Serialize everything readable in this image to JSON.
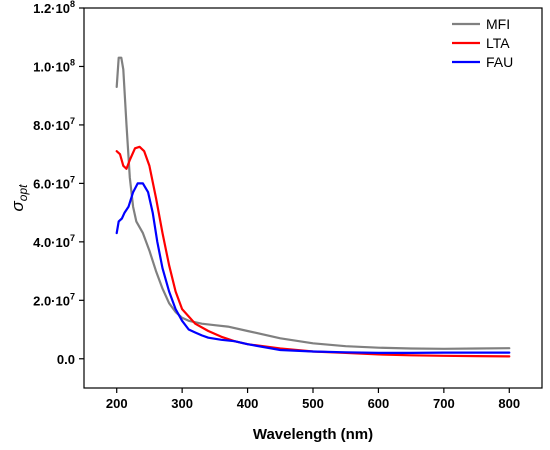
{
  "chart_data": {
    "type": "line",
    "xlabel": "Wavelength (nm)",
    "ylabel": {
      "symbol": "σ",
      "subscript": "opt"
    },
    "xlim": [
      150,
      850
    ],
    "ylim": [
      -10000000,
      120000000
    ],
    "x_ticks": [
      200,
      300,
      400,
      500,
      600,
      700,
      800
    ],
    "x_tick_labels": [
      "200",
      "300",
      "400",
      "500",
      "600",
      "700",
      "800"
    ],
    "y_ticks": [
      0,
      20000000,
      40000000,
      60000000,
      80000000,
      100000000,
      120000000
    ],
    "y_tick_labels": [
      {
        "mantissa": "0.0",
        "exp": ""
      },
      {
        "mantissa": "2.0·10",
        "exp": "7"
      },
      {
        "mantissa": "4.0·10",
        "exp": "7"
      },
      {
        "mantissa": "6.0·10",
        "exp": "7"
      },
      {
        "mantissa": "8.0·10",
        "exp": "7"
      },
      {
        "mantissa": "1.0·10",
        "exp": "8"
      },
      {
        "mantissa": "1.2·10",
        "exp": "8"
      }
    ],
    "grid": false,
    "legend_position": "top-right",
    "series": [
      {
        "name": "MFI",
        "color": "#808080",
        "points": [
          [
            200,
            93000000
          ],
          [
            203,
            103000000
          ],
          [
            207,
            103000000
          ],
          [
            210,
            99000000
          ],
          [
            215,
            80000000
          ],
          [
            220,
            62000000
          ],
          [
            225,
            52000000
          ],
          [
            230,
            47000000
          ],
          [
            240,
            43000000
          ],
          [
            250,
            37000000
          ],
          [
            260,
            30000000
          ],
          [
            270,
            24000000
          ],
          [
            280,
            19000000
          ],
          [
            290,
            16000000
          ],
          [
            300,
            14000000
          ],
          [
            310,
            13000000
          ],
          [
            330,
            12000000
          ],
          [
            350,
            11500000
          ],
          [
            370,
            11000000
          ],
          [
            400,
            9500000
          ],
          [
            450,
            7000000
          ],
          [
            500,
            5300000
          ],
          [
            550,
            4300000
          ],
          [
            600,
            3800000
          ],
          [
            650,
            3500000
          ],
          [
            700,
            3400000
          ],
          [
            750,
            3500000
          ],
          [
            800,
            3600000
          ]
        ]
      },
      {
        "name": "LTA",
        "color": "#ff0000",
        "points": [
          [
            200,
            71000000
          ],
          [
            205,
            70000000
          ],
          [
            210,
            66000000
          ],
          [
            215,
            65000000
          ],
          [
            220,
            68000000
          ],
          [
            228,
            72000000
          ],
          [
            235,
            72500000
          ],
          [
            242,
            71000000
          ],
          [
            250,
            66000000
          ],
          [
            260,
            55000000
          ],
          [
            270,
            43000000
          ],
          [
            280,
            32000000
          ],
          [
            290,
            23000000
          ],
          [
            300,
            17000000
          ],
          [
            320,
            12000000
          ],
          [
            340,
            9500000
          ],
          [
            360,
            7500000
          ],
          [
            380,
            6000000
          ],
          [
            400,
            5000000
          ],
          [
            450,
            3500000
          ],
          [
            500,
            2500000
          ],
          [
            550,
            2000000
          ],
          [
            600,
            1500000
          ],
          [
            650,
            1200000
          ],
          [
            700,
            1000000
          ],
          [
            750,
            900000
          ],
          [
            800,
            800000
          ]
        ]
      },
      {
        "name": "FAU",
        "color": "#0000ff",
        "points": [
          [
            200,
            43000000
          ],
          [
            203,
            47000000
          ],
          [
            208,
            48000000
          ],
          [
            212,
            50000000
          ],
          [
            218,
            52000000
          ],
          [
            225,
            57000000
          ],
          [
            232,
            60000000
          ],
          [
            240,
            60000000
          ],
          [
            248,
            57000000
          ],
          [
            255,
            50000000
          ],
          [
            262,
            40000000
          ],
          [
            270,
            31000000
          ],
          [
            280,
            23000000
          ],
          [
            290,
            17000000
          ],
          [
            300,
            13000000
          ],
          [
            310,
            10000000
          ],
          [
            320,
            9000000
          ],
          [
            330,
            8000000
          ],
          [
            340,
            7200000
          ],
          [
            360,
            6500000
          ],
          [
            380,
            6000000
          ],
          [
            400,
            5000000
          ],
          [
            450,
            3000000
          ],
          [
            500,
            2500000
          ],
          [
            550,
            2200000
          ],
          [
            600,
            2000000
          ],
          [
            650,
            2000000
          ],
          [
            700,
            2100000
          ],
          [
            750,
            2100000
          ],
          [
            800,
            2100000
          ]
        ]
      }
    ]
  }
}
